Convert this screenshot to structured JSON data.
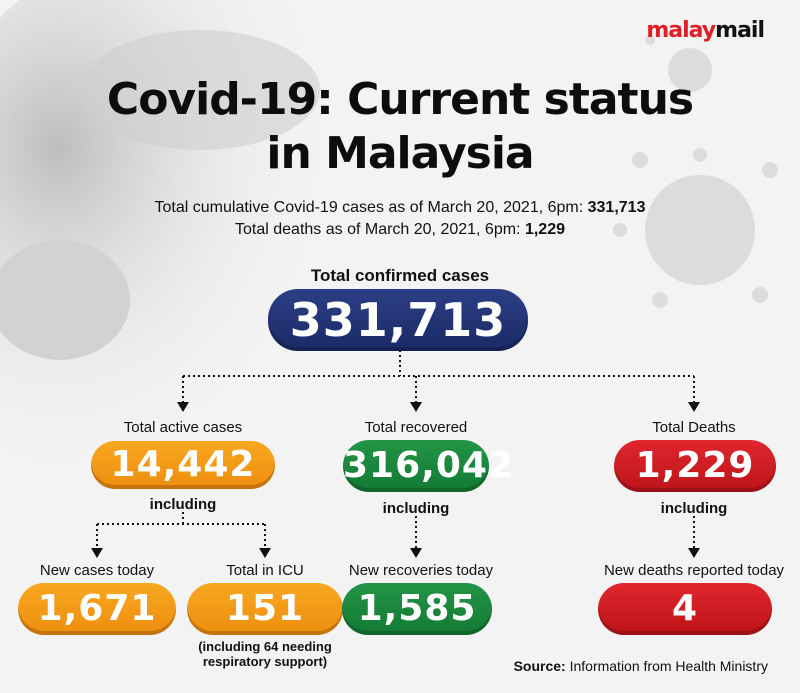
{
  "brand": {
    "part1": "malay",
    "part2": "mail"
  },
  "title": {
    "line1": "Covid-19: Current status",
    "line2": "in Malaysia"
  },
  "subtitle": {
    "line1_text": "Total cumulative Covid-19 cases as of March 20, 2021, 6pm: ",
    "line1_value": "331,713",
    "line2_text": "Total deaths as of March 20, 2021, 6pm: ",
    "line2_value": "1,229"
  },
  "total": {
    "label": "Total confirmed cases",
    "value": "331,713"
  },
  "branches": {
    "active": {
      "label": "Total active cases",
      "value": "14,442",
      "including": "including"
    },
    "recovered": {
      "label": "Total recovered",
      "value": "316,042",
      "including": "including"
    },
    "deaths": {
      "label": "Total Deaths",
      "value": "1,229",
      "including": "including"
    }
  },
  "details": {
    "new_cases": {
      "label": "New cases today",
      "value": "1,671"
    },
    "icu": {
      "label": "Total in ICU",
      "value": "151",
      "note_line1": "(including 64 needing",
      "note_line2": "respiratory support)"
    },
    "new_recoveries": {
      "label": "New recoveries today",
      "value": "1,585"
    },
    "new_deaths": {
      "label": "New deaths reported today",
      "value": "4"
    }
  },
  "source": {
    "prefix": "Source:",
    "text": " Information from Health Ministry"
  },
  "colors": {
    "navy": "#1f2f70",
    "orange": "#f39a1a",
    "green": "#1a8a3c",
    "red": "#d11c22"
  }
}
